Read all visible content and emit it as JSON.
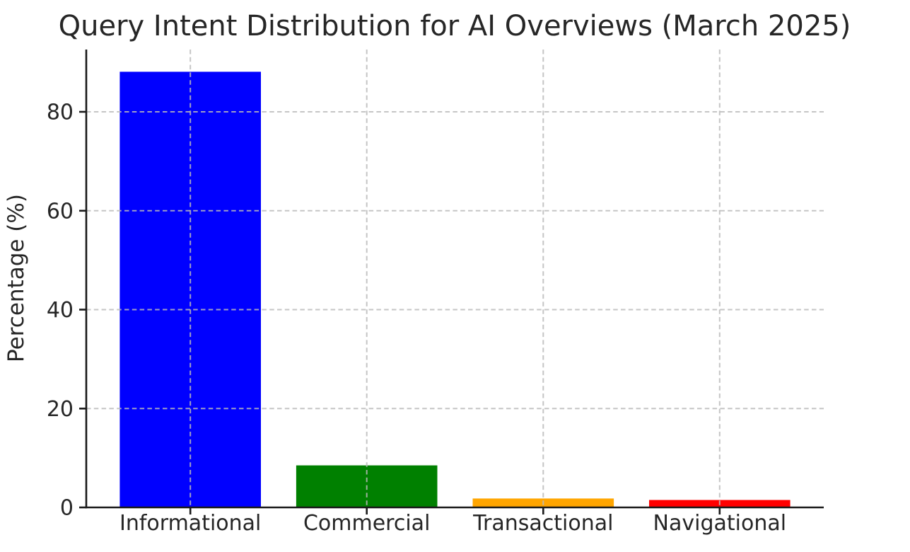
{
  "window": {
    "background": "#ffffff"
  },
  "chart_data": {
    "type": "bar",
    "title": "Query Intent Distribution for AI Overviews (March 2025)",
    "xlabel": "",
    "ylabel": "Percentage (%)",
    "categories": [
      "Informational",
      "Commercial",
      "Transactional",
      "Navigational"
    ],
    "values": [
      88.1,
      8.5,
      1.8,
      1.5
    ],
    "bar_colors": [
      "#0000ff",
      "#008000",
      "#ffa500",
      "#ff0000"
    ],
    "ylim": [
      0,
      92.6
    ],
    "yticks": [
      0,
      20,
      40,
      60,
      80
    ],
    "grid": true,
    "grid_style": "dashed",
    "grid_axes": "both",
    "grid_above_bars": true,
    "legend_position": "none",
    "colors": {
      "grid": "#bbbbbb",
      "axis": "#1a1a1a",
      "text": "#262626",
      "background": "#ffffff"
    }
  }
}
